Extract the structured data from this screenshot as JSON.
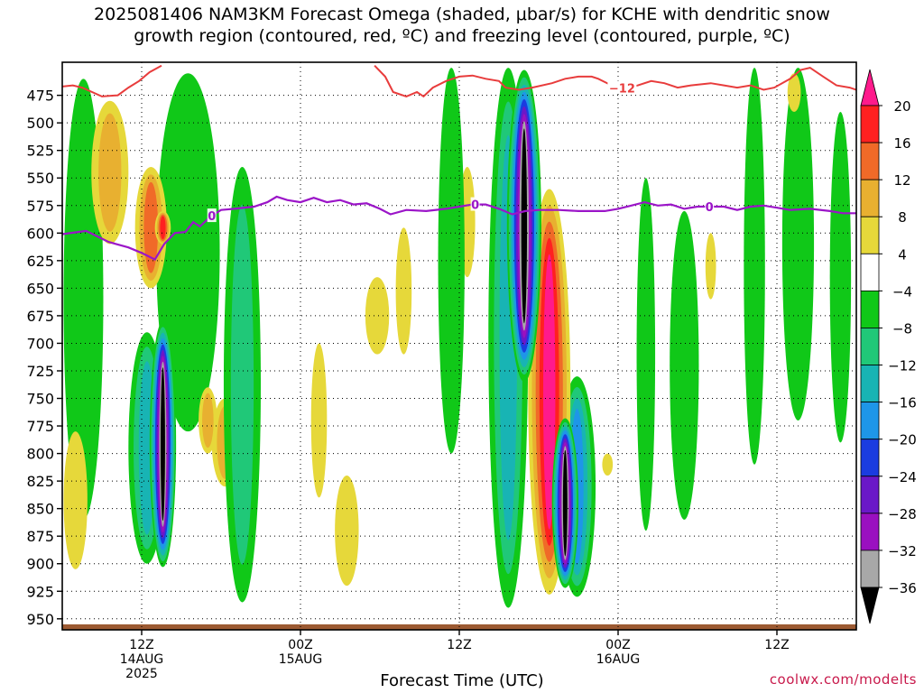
{
  "title_line1": "2025081406 NAM3KM Forecast Omega (shaded, μbar/s) for KCHE with dendritic snow",
  "title_line2": "growth region (contoured, red, ºC) and freezing level (contoured, purple, ºC)",
  "credit": "coolwx.com/modelts",
  "chart_data": {
    "type": "heatmap",
    "title": "2025081406 NAM3KM Forecast Omega (shaded, μbar/s) for KCHE with dendritic snow growth region (contoured, red, ºC) and freezing level (contoured, purple, ºC)",
    "xlabel": "Forecast Time (UTC)",
    "ylabel": "",
    "x_range_hours_utc_from_14AUG00Z": [
      6,
      66
    ],
    "y_range_mb": [
      960,
      445
    ],
    "y_scale": "linear, inverted (pressure)",
    "y_ticks": [
      475,
      500,
      525,
      550,
      575,
      600,
      625,
      650,
      675,
      700,
      725,
      750,
      775,
      800,
      825,
      850,
      875,
      900,
      925,
      950
    ],
    "x_ticks": [
      {
        "hour": 12,
        "l1": "12Z",
        "l2": "14AUG",
        "l3": "2025"
      },
      {
        "hour": 24,
        "l1": "00Z",
        "l2": "15AUG",
        "l3": ""
      },
      {
        "hour": 36,
        "l1": "12Z",
        "l2": "",
        "l3": ""
      },
      {
        "hour": 48,
        "l1": "00Z",
        "l2": "16AUG",
        "l3": ""
      },
      {
        "hour": 60,
        "l1": "12Z",
        "l2": "",
        "l3": ""
      }
    ],
    "grid": "dotted",
    "colorbar": {
      "units": "μbar/s",
      "labels": [
        "20",
        "16",
        "12",
        "8",
        "4",
        "−4",
        "−8",
        "−12",
        "−16",
        "−20",
        "−24",
        "−28",
        "−32",
        "−36"
      ],
      "bins": [
        {
          "lo": 16,
          "hi": 20,
          "color": "#ff2020"
        },
        {
          "lo": 12,
          "hi": 16,
          "color": "#f06a28"
        },
        {
          "lo": 8,
          "hi": 12,
          "color": "#e8b030"
        },
        {
          "lo": 4,
          "hi": 8,
          "color": "#e6d83a"
        },
        {
          "lo": -4,
          "hi": 4,
          "color": "#ffffff"
        },
        {
          "lo": -8,
          "hi": -4,
          "color": "#10c818"
        },
        {
          "lo": -12,
          "hi": -8,
          "color": "#20c878"
        },
        {
          "lo": -16,
          "hi": -12,
          "color": "#18b4b4"
        },
        {
          "lo": -20,
          "hi": -16,
          "color": "#1e96e8"
        },
        {
          "lo": -24,
          "hi": -20,
          "color": "#1a3ce0"
        },
        {
          "lo": -28,
          "hi": -24,
          "color": "#6a18c8"
        },
        {
          "lo": -32,
          "hi": -28,
          "color": "#9a10c0"
        },
        {
          "lo": -36,
          "hi": -32,
          "color": "#a8a8a8"
        }
      ],
      "top_extend_color": "#ff1a8c",
      "bottom_extend_color": "#000000"
    },
    "freezing_level_contour": {
      "label": "0",
      "color": "#9b15c8",
      "points": [
        [
          6,
          601
        ],
        [
          7.8,
          598
        ],
        [
          9.5,
          608
        ],
        [
          11,
          613
        ],
        [
          12,
          618
        ],
        [
          13,
          624
        ],
        [
          13.7,
          610
        ],
        [
          14.5,
          600
        ],
        [
          15.3,
          599
        ],
        [
          15.9,
          590
        ],
        [
          16.4,
          594
        ],
        [
          17.2,
          585
        ],
        [
          18,
          579
        ],
        [
          19,
          578
        ],
        [
          20.5,
          576
        ],
        [
          21.5,
          572
        ],
        [
          22.2,
          567
        ],
        [
          23,
          570
        ],
        [
          24,
          572
        ],
        [
          25,
          568
        ],
        [
          26,
          572
        ],
        [
          27,
          570
        ],
        [
          28,
          574
        ],
        [
          29,
          573
        ],
        [
          30,
          578
        ],
        [
          30.8,
          583
        ],
        [
          32,
          579
        ],
        [
          33.5,
          580
        ],
        [
          35,
          578
        ],
        [
          36,
          576
        ],
        [
          37,
          574
        ],
        [
          38,
          574
        ],
        [
          39,
          578
        ],
        [
          40,
          583
        ],
        [
          41,
          580
        ],
        [
          42,
          579
        ],
        [
          43.5,
          579
        ],
        [
          45,
          580
        ],
        [
          47,
          580
        ],
        [
          48,
          578
        ],
        [
          49,
          575
        ],
        [
          50,
          572
        ],
        [
          51,
          575
        ],
        [
          52,
          574
        ],
        [
          53,
          578
        ],
        [
          54,
          576
        ],
        [
          56,
          576
        ],
        [
          57,
          579
        ],
        [
          58,
          576
        ],
        [
          59,
          575
        ],
        [
          60,
          577
        ],
        [
          61,
          579
        ],
        [
          62.5,
          578
        ],
        [
          64,
          580
        ],
        [
          65,
          582
        ],
        [
          66,
          582
        ]
      ],
      "label_positions_hour": [
        17.3,
        37.2,
        54.9
      ]
    },
    "dendritic_contour": {
      "label": "−12",
      "color": "#e83c3c",
      "points": [
        [
          6,
          467
        ],
        [
          6.8,
          466
        ],
        [
          7.5,
          468
        ],
        [
          9,
          476
        ],
        [
          10.2,
          475
        ],
        [
          11,
          468
        ],
        [
          11.8,
          462
        ],
        [
          12.6,
          454
        ],
        [
          13.5,
          448
        ]
      ],
      "points_b": [
        [
          29.6,
          448
        ],
        [
          30.4,
          458
        ],
        [
          31,
          472
        ],
        [
          32,
          476
        ],
        [
          32.8,
          472
        ],
        [
          33.3,
          476
        ],
        [
          34,
          468
        ],
        [
          35,
          462
        ],
        [
          36,
          458
        ],
        [
          37,
          457
        ],
        [
          38,
          460
        ],
        [
          39,
          462
        ],
        [
          39.5,
          468
        ],
        [
          40.5,
          470
        ],
        [
          41.5,
          468
        ],
        [
          43,
          464
        ],
        [
          44,
          460
        ],
        [
          45,
          458
        ],
        [
          46,
          458
        ],
        [
          46.5,
          460
        ],
        [
          47.5,
          466
        ],
        [
          48.5,
          469
        ],
        [
          49.5,
          466
        ],
        [
          50.5,
          462
        ],
        [
          51.5,
          464
        ],
        [
          52.5,
          468
        ],
        [
          53.5,
          466
        ],
        [
          55,
          464
        ],
        [
          56,
          466
        ],
        [
          57,
          468
        ],
        [
          58,
          466
        ],
        [
          59,
          470
        ],
        [
          59.8,
          468
        ],
        [
          61,
          460
        ],
        [
          61.8,
          452
        ],
        [
          62.5,
          450
        ],
        [
          63.5,
          458
        ],
        [
          64.5,
          466
        ],
        [
          65.5,
          468
        ],
        [
          66,
          470
        ]
      ],
      "inline_label": "−12",
      "inline_label_hour": 48.3
    },
    "surface_color": "#9c5a32",
    "omega_features": [
      {
        "hour": 13.6,
        "top": 680,
        "bottom": 903,
        "half_width": 1.0,
        "value": -36
      },
      {
        "hour": 40.9,
        "top": 452,
        "bottom": 735,
        "half_width": 1.3,
        "value": -36
      },
      {
        "hour": 44.0,
        "top": 768,
        "bottom": 922,
        "half_width": 1.0,
        "value": -36
      },
      {
        "hour": 42.8,
        "top": 560,
        "bottom": 928,
        "half_width": 1.6,
        "value": 20
      },
      {
        "hour": 13.6,
        "top": 580,
        "bottom": 610,
        "half_width": 0.6,
        "value": 18
      },
      {
        "hour": 12.7,
        "top": 540,
        "bottom": 650,
        "half_width": 1.2,
        "value": 12
      },
      {
        "hour": 9.6,
        "top": 480,
        "bottom": 610,
        "half_width": 1.4,
        "value": 10
      },
      {
        "hour": 17.0,
        "top": 740,
        "bottom": 800,
        "half_width": 0.7,
        "value": 10
      },
      {
        "hour": 18.3,
        "top": 750,
        "bottom": 830,
        "half_width": 1.0,
        "value": 9
      },
      {
        "hour": 15.5,
        "top": 455,
        "bottom": 780,
        "half_width": 2.4,
        "value": -6
      },
      {
        "hour": 7.6,
        "top": 460,
        "bottom": 860,
        "half_width": 1.5,
        "value": -5
      },
      {
        "hour": 19.6,
        "top": 540,
        "bottom": 935,
        "half_width": 1.4,
        "value": -10
      },
      {
        "hour": 12.4,
        "top": 690,
        "bottom": 900,
        "half_width": 1.4,
        "value": -14
      },
      {
        "hour": 39.7,
        "top": 450,
        "bottom": 940,
        "half_width": 1.5,
        "value": -12
      },
      {
        "hour": 44.9,
        "top": 730,
        "bottom": 930,
        "half_width": 1.4,
        "value": -16
      },
      {
        "hour": 35.4,
        "top": 450,
        "bottom": 800,
        "half_width": 1.0,
        "value": -6
      },
      {
        "hour": 50.1,
        "top": 550,
        "bottom": 870,
        "half_width": 0.7,
        "value": -5
      },
      {
        "hour": 53.0,
        "top": 580,
        "bottom": 860,
        "half_width": 1.1,
        "value": -5
      },
      {
        "hour": 58.3,
        "top": 450,
        "bottom": 810,
        "half_width": 0.8,
        "value": -5
      },
      {
        "hour": 61.6,
        "top": 450,
        "bottom": 770,
        "half_width": 1.2,
        "value": -5
      },
      {
        "hour": 64.8,
        "top": 490,
        "bottom": 790,
        "half_width": 0.8,
        "value": -6
      },
      {
        "hour": 29.8,
        "top": 640,
        "bottom": 710,
        "half_width": 0.9,
        "value": 5
      },
      {
        "hour": 25.4,
        "top": 700,
        "bottom": 840,
        "half_width": 0.6,
        "value": 5
      },
      {
        "hour": 27.5,
        "top": 820,
        "bottom": 920,
        "half_width": 0.9,
        "value": 6
      },
      {
        "hour": 7.0,
        "top": 780,
        "bottom": 905,
        "half_width": 0.9,
        "value": 5
      },
      {
        "hour": 31.8,
        "top": 595,
        "bottom": 710,
        "half_width": 0.6,
        "value": 5
      },
      {
        "hour": 36.6,
        "top": 540,
        "bottom": 640,
        "half_width": 0.6,
        "value": 5
      },
      {
        "hour": 55.0,
        "top": 600,
        "bottom": 660,
        "half_width": 0.4,
        "value": 5
      },
      {
        "hour": 61.3,
        "top": 455,
        "bottom": 490,
        "half_width": 0.5,
        "value": 5
      },
      {
        "hour": 47.2,
        "top": 800,
        "bottom": 820,
        "half_width": 0.4,
        "value": 5
      }
    ]
  }
}
